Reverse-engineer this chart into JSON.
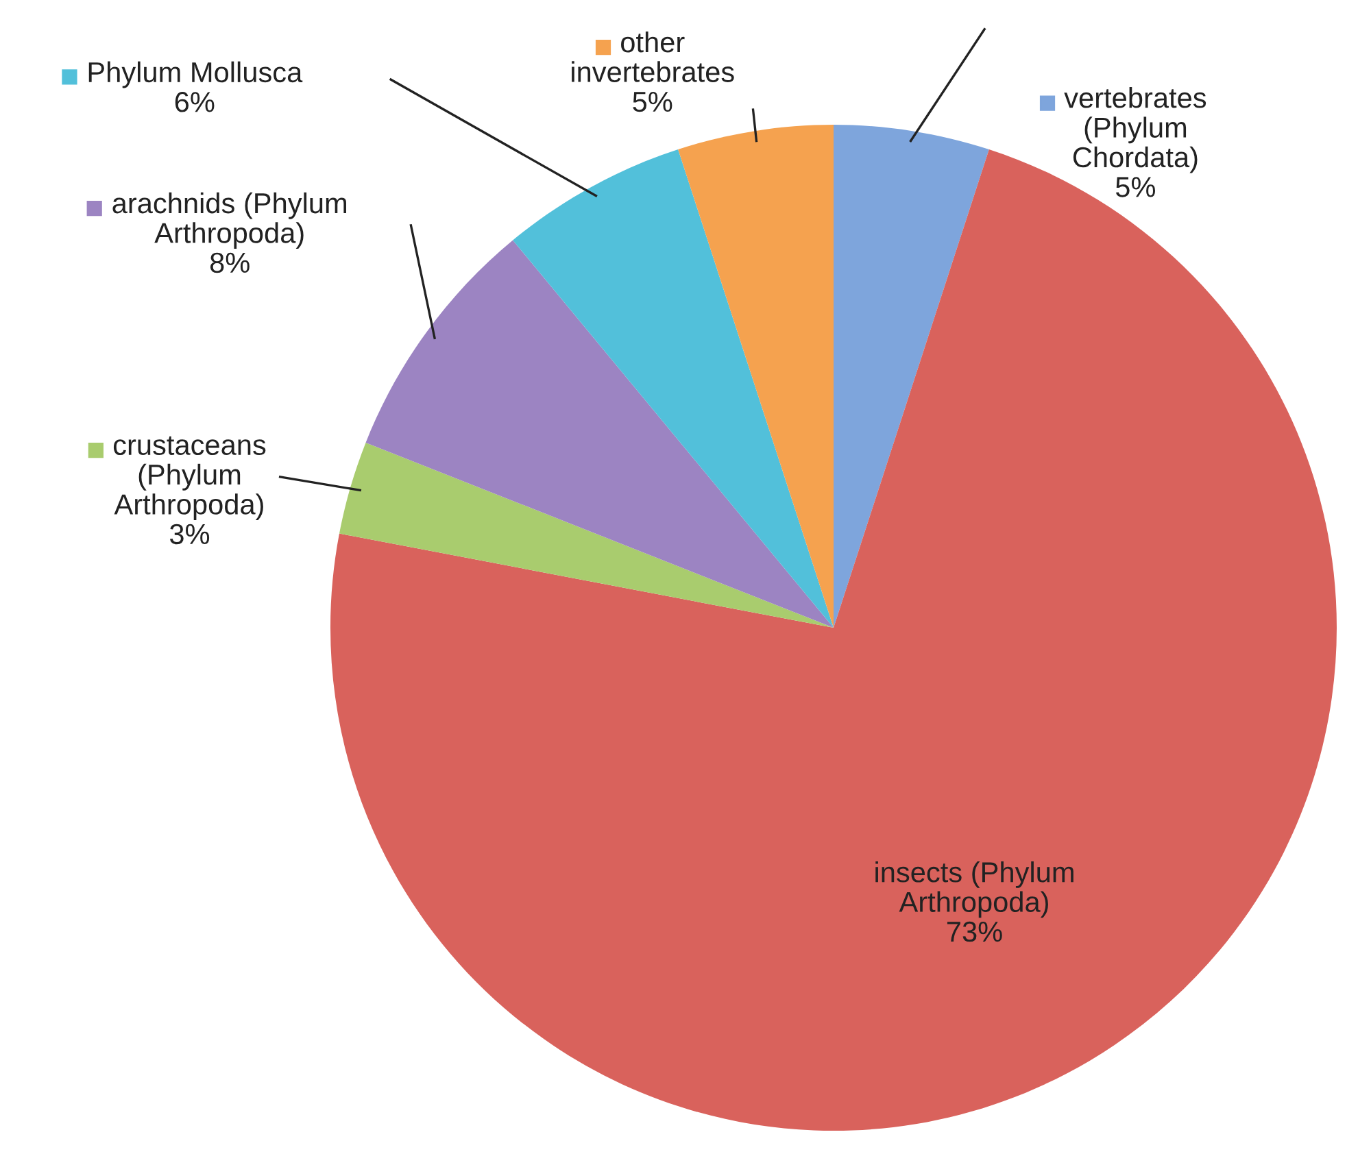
{
  "chart_data": {
    "type": "pie",
    "categories": [
      "vertebrates\n(Phylum\nChordata)",
      "insects (Phylum\nArthropoda)",
      "crustaceans\n(Phylum\nArthropoda)",
      "arachnids (Phylum\nArthropoda)",
      "Phylum Mollusca",
      "other\ninvertebrates"
    ],
    "values": [
      5,
      73,
      3,
      8,
      6,
      5
    ],
    "value_labels": [
      "5%",
      "73%",
      "3%",
      "8%",
      "6%",
      "5%"
    ],
    "colors": [
      "#7ea5dc",
      "#d9625c",
      "#a9cc6e",
      "#9c84c2",
      "#52c0da",
      "#f5a24f"
    ],
    "legend": "left"
  }
}
